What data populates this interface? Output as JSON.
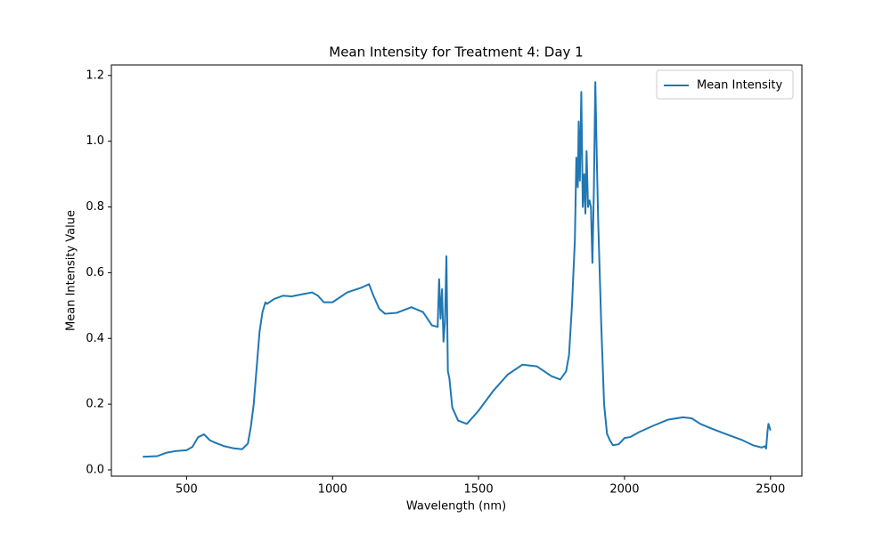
{
  "chart_data": {
    "type": "line",
    "title": "Mean Intensity for Treatment 4: Day 1",
    "x_label": "Wavelength (nm)",
    "y_label": "Mean Intensity Value",
    "x": [
      350,
      400,
      430,
      460,
      500,
      520,
      540,
      560,
      580,
      600,
      630,
      660,
      690,
      710,
      720,
      730,
      740,
      750,
      760,
      770,
      775,
      800,
      830,
      860,
      900,
      930,
      950,
      970,
      1000,
      1050,
      1100,
      1125,
      1140,
      1160,
      1180,
      1220,
      1270,
      1310,
      1340,
      1360,
      1365,
      1370,
      1375,
      1380,
      1385,
      1390,
      1395,
      1400,
      1410,
      1430,
      1460,
      1500,
      1550,
      1600,
      1650,
      1700,
      1750,
      1780,
      1800,
      1810,
      1820,
      1830,
      1835,
      1840,
      1843,
      1847,
      1852,
      1857,
      1862,
      1866,
      1870,
      1875,
      1880,
      1885,
      1890,
      1895,
      1900,
      1905,
      1910,
      1920,
      1930,
      1940,
      1950,
      1960,
      1980,
      2000,
      2020,
      2050,
      2100,
      2150,
      2200,
      2230,
      2260,
      2300,
      2350,
      2400,
      2440,
      2470,
      2480,
      2485,
      2490,
      2493,
      2500
    ],
    "series": [
      {
        "name": "Mean Intensity",
        "color": "#1f77b4",
        "values": [
          0.04,
          0.042,
          0.052,
          0.057,
          0.06,
          0.07,
          0.1,
          0.108,
          0.09,
          0.082,
          0.072,
          0.066,
          0.063,
          0.08,
          0.13,
          0.2,
          0.31,
          0.42,
          0.48,
          0.51,
          0.505,
          0.52,
          0.53,
          0.528,
          0.535,
          0.54,
          0.53,
          0.51,
          0.51,
          0.54,
          0.555,
          0.565,
          0.53,
          0.49,
          0.475,
          0.478,
          0.495,
          0.48,
          0.44,
          0.435,
          0.58,
          0.46,
          0.55,
          0.39,
          0.45,
          0.65,
          0.3,
          0.28,
          0.19,
          0.15,
          0.14,
          0.18,
          0.24,
          0.29,
          0.32,
          0.315,
          0.285,
          0.275,
          0.3,
          0.35,
          0.5,
          0.7,
          0.95,
          0.86,
          1.06,
          0.88,
          1.15,
          0.8,
          0.9,
          0.78,
          0.97,
          0.8,
          0.82,
          0.8,
          0.63,
          0.85,
          1.18,
          0.95,
          0.75,
          0.45,
          0.2,
          0.11,
          0.09,
          0.075,
          0.078,
          0.097,
          0.1,
          0.115,
          0.135,
          0.153,
          0.16,
          0.157,
          0.14,
          0.125,
          0.108,
          0.092,
          0.075,
          0.068,
          0.072,
          0.065,
          0.12,
          0.14,
          0.12
        ]
      }
    ],
    "xlim": [
      242.5,
      2607.5
    ],
    "ylim": [
      -0.019,
      1.232
    ],
    "xticks": [
      500,
      1000,
      1500,
      2000,
      2500
    ],
    "yticks": [
      {
        "value": 0,
        "label": "0.0"
      },
      0.2,
      0.4,
      0.6,
      0.8,
      {
        "value": 1,
        "label": "1.0"
      },
      1.2
    ],
    "legend": "upper right"
  }
}
